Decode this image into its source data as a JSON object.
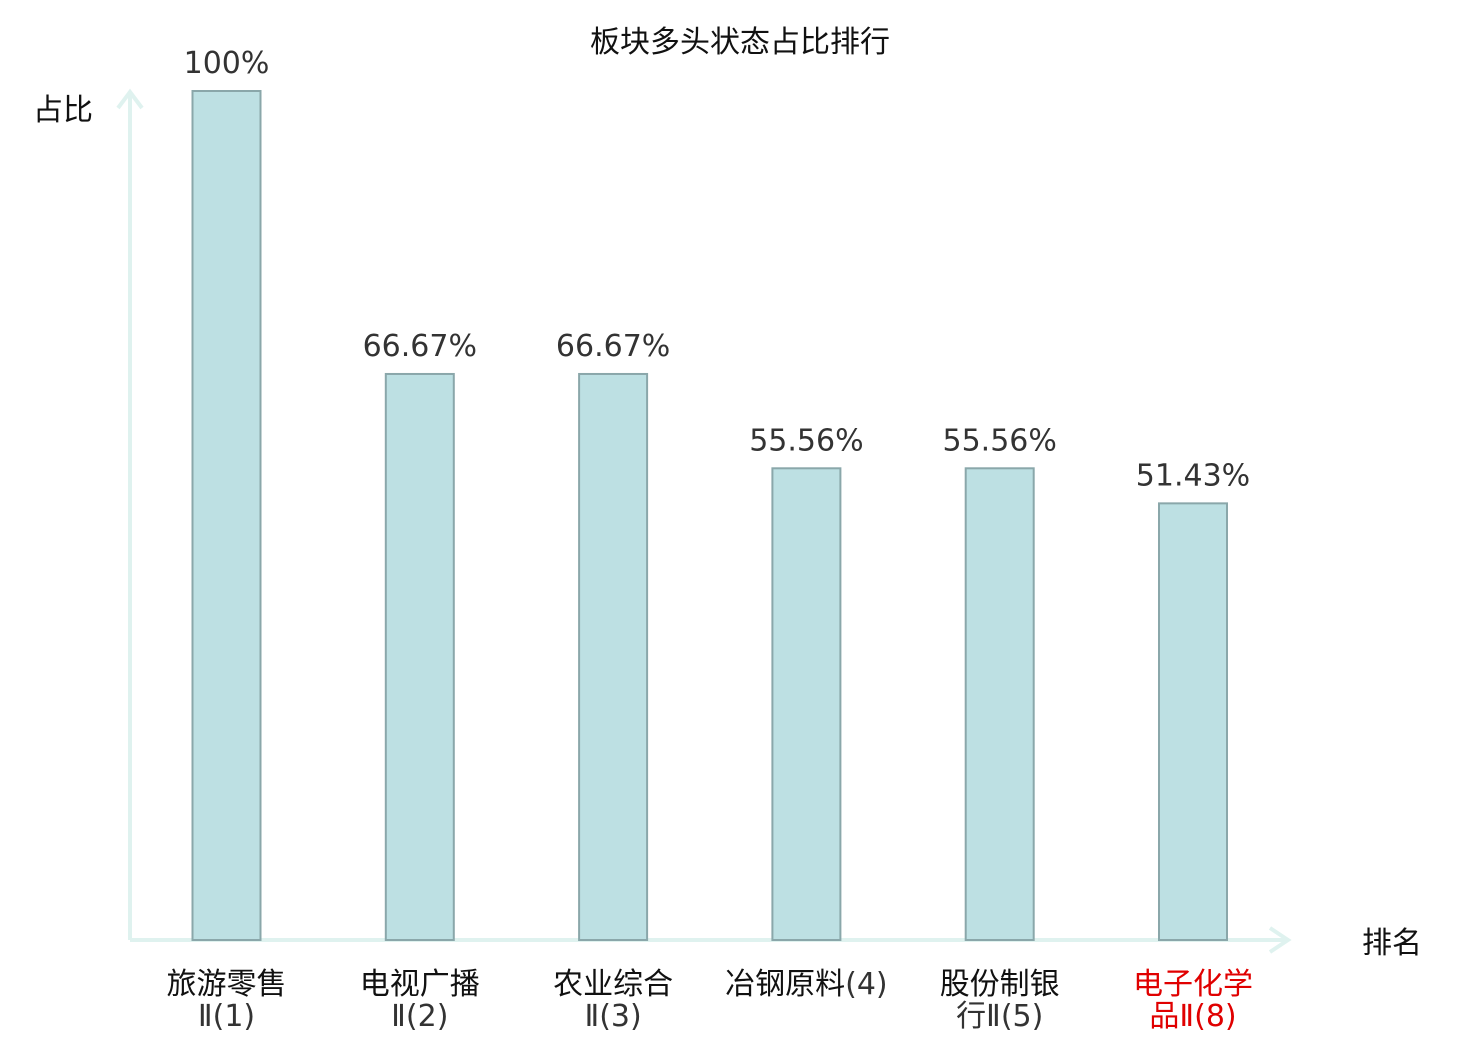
{
  "chart_data": {
    "type": "bar",
    "title": "板块多头状态占比排行",
    "ylabel": "占比",
    "xlabel": "排名",
    "ylim": [
      0,
      100
    ],
    "categories": [
      {
        "name": "旅游零售",
        "rank": "Ⅱ(1)",
        "highlight": false
      },
      {
        "name": "电视广播",
        "rank": "Ⅱ(2)",
        "highlight": false
      },
      {
        "name": "农业综合",
        "rank": "Ⅱ(3)",
        "highlight": false
      },
      {
        "name": "冶钢原料",
        "rank": "(4)",
        "highlight": false
      },
      {
        "name": "股份制银",
        "rank": "行Ⅱ(5)",
        "highlight": false
      },
      {
        "name": "电子化学",
        "rank": "品Ⅱ(8)",
        "highlight": true
      }
    ],
    "values": [
      100,
      66.67,
      66.67,
      55.56,
      55.56,
      51.43
    ],
    "value_labels": [
      "100%",
      "66.67%",
      "66.67%",
      "55.56%",
      "55.56%",
      "51.43%"
    ],
    "colors": {
      "bar_fill": "#bde0e3",
      "bar_stroke": "#8aa7aa",
      "axis": "#dff2ef",
      "text": "#333333",
      "category_text": "#111111",
      "highlight_text": "#e00000"
    }
  }
}
